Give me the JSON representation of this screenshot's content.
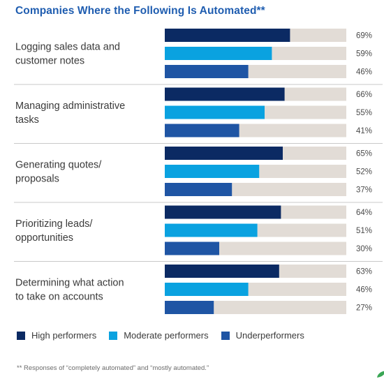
{
  "title": "Companies Where the Following Is Automated**",
  "footnote": "** Responses of “completely automated” and “mostly automated.”",
  "colors": {
    "high": "#0b2a63",
    "moderate": "#0aa2e0",
    "under": "#1f55a4",
    "track": "#e2dcd6",
    "divider": "#c9c9c9"
  },
  "legend": [
    {
      "label": "High performers",
      "color": "#0b2a63"
    },
    {
      "label": "Moderate performers",
      "color": "#0aa2e0"
    },
    {
      "label": "Underperformers",
      "color": "#1f55a4"
    }
  ],
  "chart_data": {
    "type": "bar",
    "orientation": "horizontal",
    "title": "Companies Where the Following Is Automated**",
    "categories": [
      [
        "Logging sales data and",
        "customer notes"
      ],
      [
        "Managing administrative",
        "tasks"
      ],
      [
        "Generating quotes/",
        "proposals"
      ],
      [
        "Prioritizing leads/",
        "opportunities"
      ],
      [
        "Determining what action",
        "to take on accounts"
      ]
    ],
    "series": [
      {
        "name": "High performers",
        "values": [
          69,
          66,
          65,
          64,
          63
        ]
      },
      {
        "name": "Moderate performers",
        "values": [
          59,
          55,
          52,
          51,
          46
        ]
      },
      {
        "name": "Underperformers",
        "values": [
          46,
          41,
          37,
          30,
          27
        ]
      }
    ],
    "value_suffix": "%",
    "xlim": [
      0,
      100
    ],
    "grid": false,
    "legend_position": "bottom"
  }
}
